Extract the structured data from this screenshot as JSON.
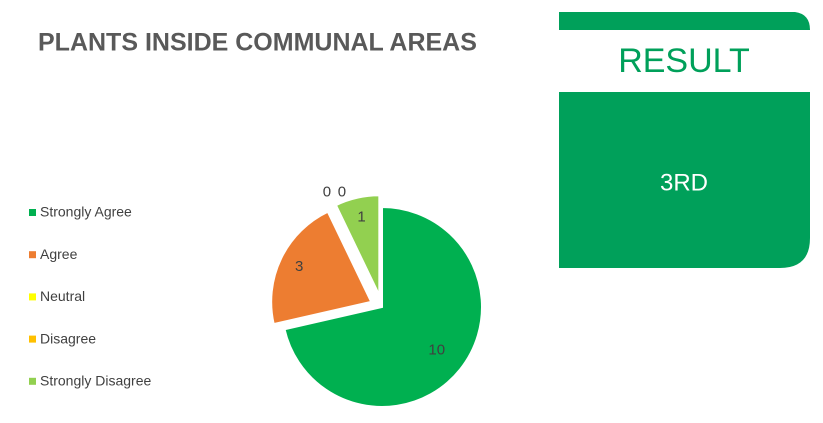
{
  "chart_data": {
    "type": "pie",
    "title": "PLANTS INSIDE COMMUNAL AREAS",
    "categories": [
      "Strongly Agree",
      "Agree",
      "Neutral",
      "Disagree",
      "Strongly Disagree"
    ],
    "values": [
      10,
      3,
      0,
      0,
      1
    ],
    "colors": [
      "#00b050",
      "#ed7d31",
      "#ffff00",
      "#ffc000",
      "#92d050"
    ],
    "legend": "left"
  },
  "result_panel": {
    "heading": "RESULT",
    "text": "3RD"
  }
}
